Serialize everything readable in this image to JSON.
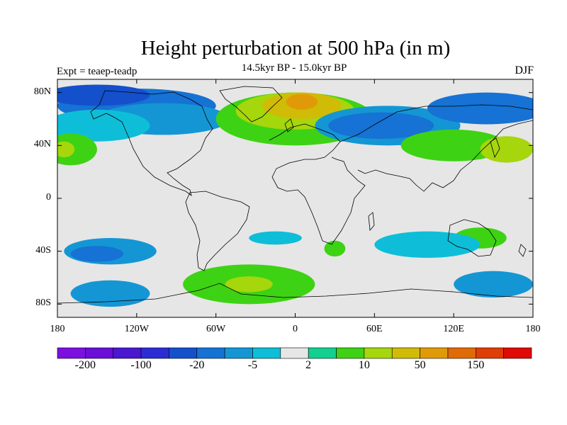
{
  "title": "Height perturbation at 500 hPa (in m)",
  "subtitle": "14.5kyr BP - 15.0kyr BP",
  "experiment_label": "Expt = teaep-teadp",
  "season": "DJF",
  "map": {
    "projection": "cylindrical equidistant",
    "lon_range": [
      -180,
      180
    ],
    "lat_range": [
      -90,
      90
    ],
    "background_color": "#e6e6e6",
    "lat_ticks": [
      {
        "value": 80,
        "label": "80N"
      },
      {
        "value": 40,
        "label": "40N"
      },
      {
        "value": 0,
        "label": "0"
      },
      {
        "value": -40,
        "label": "40S"
      },
      {
        "value": -80,
        "label": "80S"
      }
    ],
    "lon_ticks": [
      {
        "value": -180,
        "label": "180"
      },
      {
        "value": -120,
        "label": "120W"
      },
      {
        "value": -60,
        "label": "60W"
      },
      {
        "value": 0,
        "label": "0"
      },
      {
        "value": 60,
        "label": "60E"
      },
      {
        "value": 120,
        "label": "120E"
      },
      {
        "value": 180,
        "label": "180"
      }
    ]
  },
  "colorbar": {
    "colors": [
      "#7b10e0",
      "#6a0ed8",
      "#4a18d0",
      "#2c2cd4",
      "#1450cc",
      "#1672d4",
      "#1496d4",
      "#0ebed8",
      "#e6e6e6",
      "#12d090",
      "#3ed214",
      "#a6d60c",
      "#d0bc06",
      "#e09a08",
      "#e06a06",
      "#e03c06",
      "#e00a06"
    ],
    "labels": [
      {
        "text": "-200",
        "index": 1
      },
      {
        "text": "-100",
        "index": 3
      },
      {
        "text": "-20",
        "index": 5
      },
      {
        "text": "-5",
        "index": 7
      },
      {
        "text": "2",
        "index": 9
      },
      {
        "text": "10",
        "index": 11
      },
      {
        "text": "50",
        "index": 13
      },
      {
        "text": "150",
        "index": 15
      }
    ]
  },
  "field_blobs": [
    {
      "lon": -120,
      "lat": 70,
      "rlon": 60,
      "rlat": 13,
      "color": "#1672d4"
    },
    {
      "lon": -150,
      "lat": 78,
      "rlon": 40,
      "rlat": 8,
      "color": "#1450cc"
    },
    {
      "lon": -100,
      "lat": 60,
      "rlon": 50,
      "rlat": 12,
      "color": "#1496d4"
    },
    {
      "lon": -150,
      "lat": 55,
      "rlon": 40,
      "rlat": 12,
      "color": "#0ebed8"
    },
    {
      "lon": -170,
      "lat": 37,
      "rlon": 20,
      "rlat": 12,
      "color": "#3ed214"
    },
    {
      "lon": -175,
      "lat": 37,
      "rlon": 8,
      "rlat": 6,
      "color": "#a6d60c"
    },
    {
      "lon": 0,
      "lat": 60,
      "rlon": 60,
      "rlat": 20,
      "color": "#3ed214"
    },
    {
      "lon": 0,
      "lat": 66,
      "rlon": 45,
      "rlat": 14,
      "color": "#a6d60c"
    },
    {
      "lon": 5,
      "lat": 70,
      "rlon": 30,
      "rlat": 10,
      "color": "#d0bc06"
    },
    {
      "lon": 5,
      "lat": 73,
      "rlon": 12,
      "rlat": 6,
      "color": "#e09a08"
    },
    {
      "lon": 70,
      "lat": 55,
      "rlon": 55,
      "rlat": 15,
      "color": "#1496d4"
    },
    {
      "lon": 65,
      "lat": 55,
      "rlon": 40,
      "rlat": 10,
      "color": "#1672d4"
    },
    {
      "lon": 145,
      "lat": 68,
      "rlon": 45,
      "rlat": 12,
      "color": "#1672d4"
    },
    {
      "lon": 120,
      "lat": 40,
      "rlon": 40,
      "rlat": 12,
      "color": "#3ed214"
    },
    {
      "lon": 160,
      "lat": 37,
      "rlon": 20,
      "rlat": 10,
      "color": "#a6d60c"
    },
    {
      "lon": 140,
      "lat": -30,
      "rlon": 20,
      "rlat": 8,
      "color": "#3ed214"
    },
    {
      "lon": 100,
      "lat": -35,
      "rlon": 40,
      "rlat": 10,
      "color": "#0ebed8"
    },
    {
      "lon": -140,
      "lat": -40,
      "rlon": 35,
      "rlat": 10,
      "color": "#1496d4"
    },
    {
      "lon": -150,
      "lat": -42,
      "rlon": 20,
      "rlat": 6,
      "color": "#1672d4"
    },
    {
      "lon": -35,
      "lat": -65,
      "rlon": 50,
      "rlat": 15,
      "color": "#3ed214"
    },
    {
      "lon": -35,
      "lat": -65,
      "rlon": 18,
      "rlat": 6,
      "color": "#a6d60c"
    },
    {
      "lon": -15,
      "lat": -30,
      "rlon": 20,
      "rlat": 5,
      "color": "#0ebed8"
    },
    {
      "lon": 30,
      "lat": -38,
      "rlon": 8,
      "rlat": 6,
      "color": "#3ed214"
    },
    {
      "lon": 150,
      "lat": -65,
      "rlon": 30,
      "rlat": 10,
      "color": "#1496d4"
    },
    {
      "lon": -140,
      "lat": -72,
      "rlon": 30,
      "rlat": 10,
      "color": "#1496d4"
    }
  ],
  "colors": {
    "text": "#000000",
    "coastline": "#000000"
  }
}
